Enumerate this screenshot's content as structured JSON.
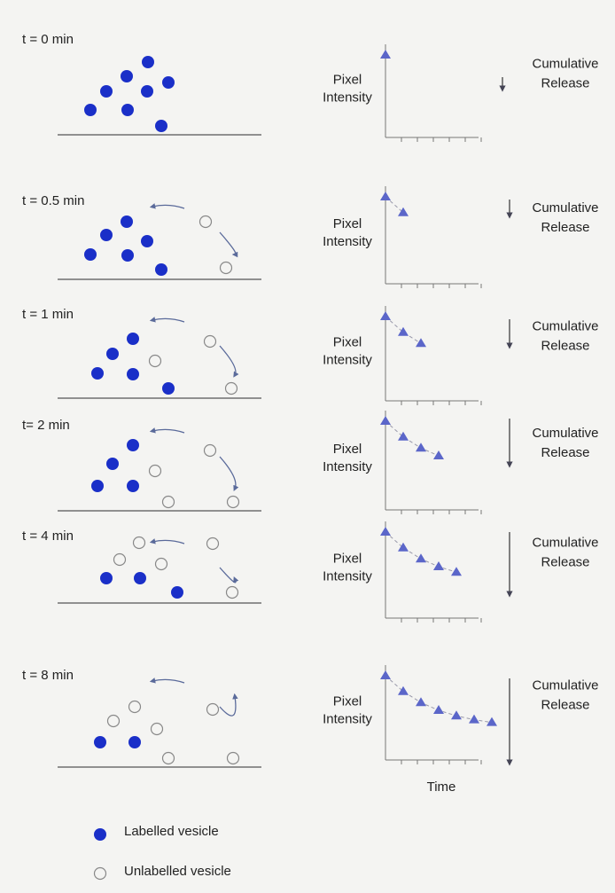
{
  "panels": [
    {
      "time_label": "t = 0 min",
      "y_label": [
        "Pixel",
        "Intensity"
      ],
      "release_label": [
        "Cumulative",
        "Release"
      ]
    },
    {
      "time_label": "t = 0.5 min",
      "y_label": [
        "Pixel",
        "Intensity"
      ],
      "release_label": [
        "Cumulative",
        "Release"
      ]
    },
    {
      "time_label": "t = 1 min",
      "y_label": [
        "Pixel",
        "Intensity"
      ],
      "release_label": [
        "Cumulative",
        "Release"
      ]
    },
    {
      "time_label": "t= 2 min",
      "y_label": [
        "Pixel",
        "Intensity"
      ],
      "release_label": [
        "Cumulative",
        "Release"
      ]
    },
    {
      "time_label": "t = 4 min",
      "y_label": [
        "Pixel",
        "Intensity"
      ],
      "release_label": [
        "Cumulative",
        "Release"
      ]
    },
    {
      "time_label": "t = 8 min",
      "y_label": [
        "Pixel",
        "Intensity"
      ],
      "release_label": [
        "Cumulative",
        "Release"
      ]
    }
  ],
  "x_label": "Time",
  "legend": [
    {
      "label": "Labelled vesicle"
    },
    {
      "label": "Unlabelled vesicle"
    }
  ]
}
